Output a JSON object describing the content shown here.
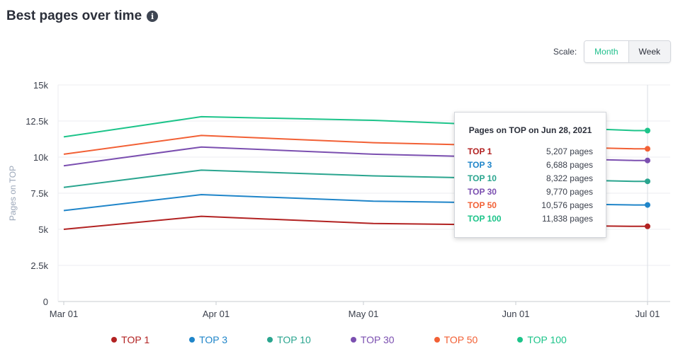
{
  "header": {
    "title": "Best pages over time",
    "info_icon": "info-icon"
  },
  "scale": {
    "label": "Scale:",
    "options": [
      "Month",
      "Week"
    ],
    "selected": "Month"
  },
  "tooltip": {
    "title": "Pages on TOP on Jun 28, 2021",
    "rows": [
      {
        "name": "TOP 1",
        "value": "5,207 pages",
        "color": "#b22222"
      },
      {
        "name": "TOP 3",
        "value": "6,688 pages",
        "color": "#1f85c9"
      },
      {
        "name": "TOP 10",
        "value": "8,322 pages",
        "color": "#2aa58f"
      },
      {
        "name": "TOP 30",
        "value": "9,770 pages",
        "color": "#7b4fb0"
      },
      {
        "name": "TOP 50",
        "value": "10,576 pages",
        "color": "#f26035"
      },
      {
        "name": "TOP 100",
        "value": "11,838 pages",
        "color": "#1dc48a"
      }
    ]
  },
  "chart_data": {
    "type": "line",
    "ylabel": "Pages on TOP",
    "ylim": [
      0,
      15000
    ],
    "yticks": [
      0,
      2500,
      5000,
      7500,
      10000,
      12500,
      15000
    ],
    "ytick_labels": [
      "0",
      "2.5k",
      "5k",
      "7.5k",
      "10k",
      "12.5k",
      "15k"
    ],
    "xtick_labels": [
      "Mar 01",
      "Apr 01",
      "May 01",
      "Jun 01",
      "Jul 01"
    ],
    "x": [
      "2021-03-01",
      "2021-03-29",
      "2021-05-03",
      "2021-06-28"
    ],
    "grid": true,
    "legend_placement": "bottom",
    "series": [
      {
        "name": "TOP 1",
        "color": "#b22222",
        "values": [
          5000,
          5900,
          5400,
          5207
        ]
      },
      {
        "name": "TOP 3",
        "color": "#1f85c9",
        "values": [
          6300,
          7400,
          6950,
          6688
        ]
      },
      {
        "name": "TOP 10",
        "color": "#2aa58f",
        "values": [
          7900,
          9100,
          8700,
          8322
        ]
      },
      {
        "name": "TOP 30",
        "color": "#7b4fb0",
        "values": [
          9400,
          10700,
          10200,
          9770
        ]
      },
      {
        "name": "TOP 50",
        "color": "#f26035",
        "values": [
          10200,
          11500,
          11000,
          10576
        ]
      },
      {
        "name": "TOP 100",
        "color": "#1dc48a",
        "values": [
          11400,
          12800,
          12550,
          11838
        ]
      }
    ]
  }
}
